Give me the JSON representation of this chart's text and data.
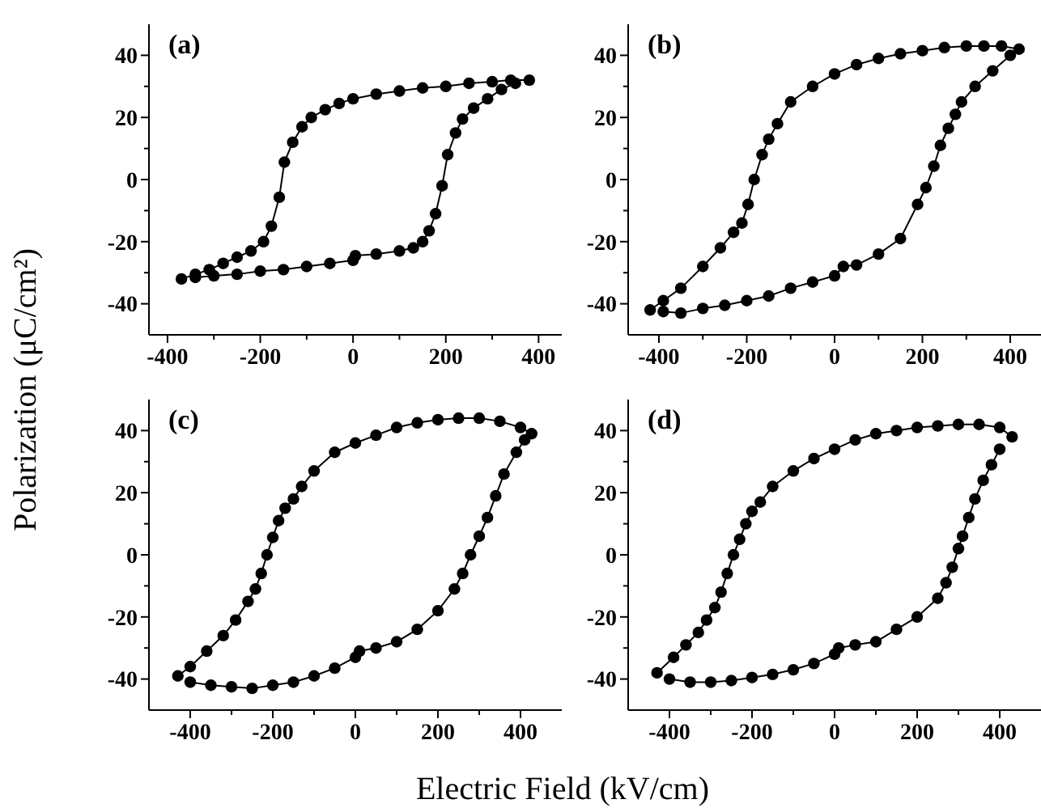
{
  "chart_data": [
    {
      "type": "line",
      "annotations": [
        "(a)"
      ],
      "ylabel": "Polarization (μC/cm²)",
      "marker": "circle",
      "xlim": [
        -440,
        450
      ],
      "ylim": [
        -50,
        50
      ],
      "xticks": [
        -400,
        {
          "value": -300,
          "label": null
        },
        -200,
        {
          "value": -100,
          "label": null
        },
        0,
        {
          "value": 100,
          "label": null
        },
        200,
        {
          "value": 300,
          "label": null
        },
        400
      ],
      "yticks": [
        -40,
        {
          "value": -30,
          "label": null
        },
        -20,
        {
          "value": -10,
          "label": null
        },
        0,
        {
          "value": 10,
          "label": null
        },
        20,
        {
          "value": 30,
          "label": null
        },
        40
      ],
      "series": [
        {
          "color": "#000000",
          "x": [
            380,
            340,
            300,
            250,
            200,
            150,
            100,
            50,
            0,
            -30,
            -60,
            -90,
            -110,
            -130,
            -148,
            -159,
            -176,
            -193,
            -220,
            -250,
            -280,
            -310,
            -340,
            -370
          ],
          "values": [
            32,
            32,
            31.5,
            31,
            30,
            29.5,
            28.5,
            27.5,
            26,
            24.5,
            22.5,
            20,
            17,
            12,
            5.6,
            -5.7,
            -15,
            -20,
            -23,
            -25,
            -27,
            -29,
            -30.5,
            -32
          ]
        },
        {
          "color": "#000000",
          "x": [
            -340,
            -300,
            -250,
            -200,
            -150,
            -100,
            -50,
            0,
            5,
            50,
            100,
            130,
            150,
            164,
            178,
            192,
            204,
            221,
            236,
            260,
            290,
            320,
            350
          ],
          "values": [
            -31.5,
            -31,
            -30.5,
            -29.5,
            -29,
            -28,
            -27,
            -26,
            -24.5,
            -24,
            -23,
            -22,
            -20,
            -16.5,
            -11,
            -2,
            8,
            15,
            19.5,
            23,
            26,
            29,
            31
          ]
        }
      ]
    },
    {
      "type": "line",
      "annotations": [
        "(b)"
      ],
      "marker": "circle",
      "xlim": [
        -470,
        470
      ],
      "ylim": [
        -50,
        50
      ],
      "xticks": [
        -400,
        {
          "value": -300,
          "label": null
        },
        -200,
        {
          "value": -100,
          "label": null
        },
        0,
        {
          "value": 100,
          "label": null
        },
        200,
        {
          "value": 300,
          "label": null
        },
        400
      ],
      "yticks": [
        -40,
        {
          "value": -30,
          "label": null
        },
        -20,
        {
          "value": -10,
          "label": null
        },
        0,
        {
          "value": 10,
          "label": null
        },
        20,
        {
          "value": 30,
          "label": null
        },
        40
      ],
      "series": [
        {
          "color": "#000000",
          "x": [
            420,
            380,
            340,
            300,
            250,
            200,
            150,
            100,
            50,
            0,
            -50,
            -100,
            -130,
            -150,
            -165,
            -183,
            -197,
            -211,
            -230,
            -260,
            -300,
            -350,
            -390,
            -420
          ],
          "values": [
            42,
            43,
            43,
            43,
            42.5,
            41.5,
            40.5,
            39,
            37,
            34,
            30,
            25,
            18,
            13,
            8,
            0,
            -8,
            -14,
            -17,
            -22,
            -28,
            -35,
            -39,
            -42
          ]
        },
        {
          "color": "#000000",
          "x": [
            -390,
            -350,
            -300,
            -250,
            -200,
            -150,
            -100,
            -50,
            0,
            20,
            50,
            100,
            150,
            189,
            208,
            226,
            241,
            259,
            275,
            289,
            320,
            360,
            400
          ],
          "values": [
            -42.5,
            -43,
            -41.5,
            -40.5,
            -39,
            -37.5,
            -35,
            -33,
            -31,
            -28,
            -27.5,
            -24,
            -19,
            -8,
            -2.6,
            4.3,
            11,
            16.5,
            21,
            25,
            30,
            35,
            40
          ]
        }
      ]
    },
    {
      "type": "line",
      "annotations": [
        "(c)"
      ],
      "xlabel": "Electric Field (kV/cm)",
      "marker": "circle",
      "xlim": [
        -500,
        500
      ],
      "ylim": [
        -50,
        50
      ],
      "xticks": [
        -400,
        {
          "value": -300,
          "label": null
        },
        -200,
        {
          "value": -100,
          "label": null
        },
        0,
        {
          "value": 100,
          "label": null
        },
        200,
        {
          "value": 300,
          "label": null
        },
        400
      ],
      "yticks": [
        -40,
        {
          "value": -30,
          "label": null
        },
        -20,
        {
          "value": -10,
          "label": null
        },
        0,
        {
          "value": 10,
          "label": null
        },
        20,
        {
          "value": 30,
          "label": null
        },
        40
      ],
      "series": [
        {
          "color": "#000000",
          "x": [
            427,
            400,
            350,
            300,
            250,
            200,
            150,
            100,
            50,
            0,
            -50,
            -100,
            -130,
            -150,
            -170,
            -186,
            -200,
            -214,
            -228,
            -242,
            -260,
            -290,
            -320,
            -360,
            -400,
            -430
          ],
          "values": [
            39,
            41,
            43,
            44,
            44,
            43.5,
            42.5,
            41,
            38.5,
            36,
            33,
            27,
            22,
            18,
            15,
            11,
            5.6,
            0,
            -6,
            -11,
            -15,
            -21,
            -26,
            -31,
            -36,
            -39
          ]
        },
        {
          "color": "#000000",
          "x": [
            -400,
            -350,
            -300,
            -250,
            -200,
            -150,
            -100,
            -50,
            0,
            10,
            50,
            100,
            150,
            200,
            240,
            260,
            279,
            300,
            320,
            340,
            360,
            390,
            410
          ],
          "values": [
            -41,
            -42,
            -42.5,
            -43,
            -42,
            -41,
            -39,
            -36.5,
            -33,
            -31,
            -30,
            -28,
            -24,
            -18,
            -11,
            -6,
            0,
            6,
            12,
            19,
            26,
            33,
            37
          ]
        }
      ]
    },
    {
      "type": "line",
      "annotations": [
        "(d)"
      ],
      "marker": "circle",
      "xlim": [
        -500,
        500
      ],
      "ylim": [
        -50,
        50
      ],
      "xticks": [
        -400,
        {
          "value": -300,
          "label": null
        },
        -200,
        {
          "value": -100,
          "label": null
        },
        0,
        {
          "value": 100,
          "label": null
        },
        200,
        {
          "value": 300,
          "label": null
        },
        400
      ],
      "yticks": [
        -40,
        {
          "value": -30,
          "label": null
        },
        -20,
        {
          "value": -10,
          "label": null
        },
        0,
        {
          "value": 10,
          "label": null
        },
        20,
        {
          "value": 30,
          "label": null
        },
        40
      ],
      "series": [
        {
          "color": "#000000",
          "x": [
            430,
            400,
            350,
            300,
            250,
            200,
            150,
            100,
            50,
            0,
            -50,
            -100,
            -150,
            -180,
            -200,
            -215,
            -230,
            -245,
            -260,
            -275,
            -290,
            -310,
            -330,
            -360,
            -390,
            -430
          ],
          "values": [
            38,
            41,
            42,
            42,
            41.5,
            41,
            40,
            39,
            37,
            34,
            31,
            27,
            22,
            17,
            14,
            10,
            5,
            0,
            -6,
            -12,
            -17,
            -21,
            -25,
            -29,
            -33,
            -38
          ]
        },
        {
          "color": "#000000",
          "x": [
            -400,
            -350,
            -300,
            -250,
            -200,
            -150,
            -100,
            -50,
            0,
            10,
            50,
            100,
            150,
            200,
            250,
            270,
            285,
            300,
            310,
            325,
            340,
            360,
            380,
            400
          ],
          "values": [
            -40,
            -41,
            -41,
            -40.5,
            -39.5,
            -38.5,
            -37,
            -35,
            -32,
            -30,
            -29,
            -28,
            -24,
            -20,
            -14,
            -9,
            -4,
            2,
            6,
            12,
            18,
            24,
            29,
            34
          ]
        }
      ]
    }
  ]
}
